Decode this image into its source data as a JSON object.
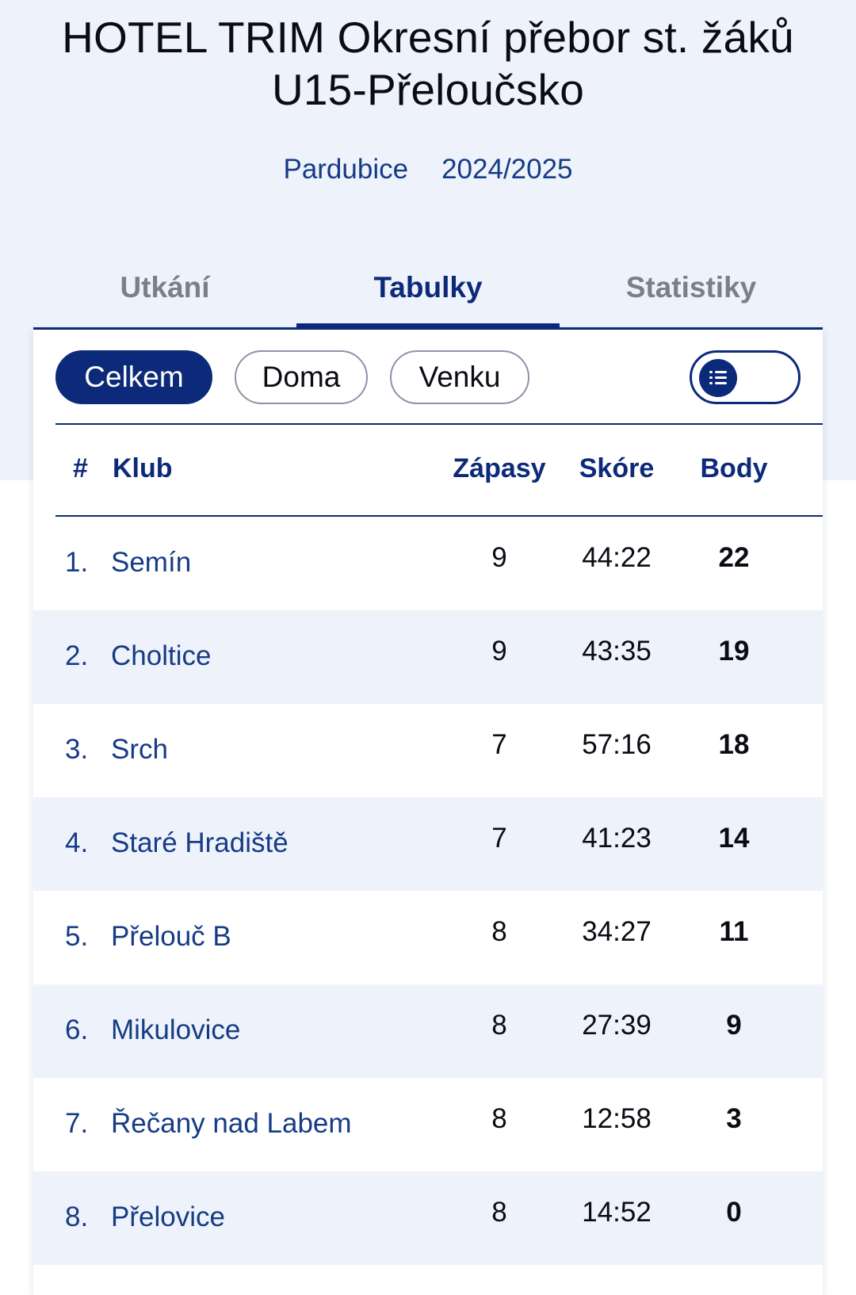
{
  "header": {
    "title_line1": "HOTEL TRIM Okresní přebor st. žáků",
    "title_line2": "U15-Přeloučsko",
    "region": "Pardubice",
    "season": "2024/2025"
  },
  "tabs": [
    {
      "label": "Utkání",
      "active": false
    },
    {
      "label": "Tabulky",
      "active": true
    },
    {
      "label": "Statistiky",
      "active": false
    }
  ],
  "filters": [
    {
      "label": "Celkem",
      "active": true
    },
    {
      "label": "Doma",
      "active": false
    },
    {
      "label": "Venku",
      "active": false
    }
  ],
  "view_toggle": {
    "icon": "list-icon",
    "state": "list"
  },
  "table": {
    "headers": {
      "rank": "#",
      "club": "Klub",
      "matches": "Zápasy",
      "score": "Skóre",
      "points": "Body"
    },
    "rows": [
      {
        "rank": "1.",
        "club": "Semín",
        "matches": "9",
        "score": "44:22",
        "points": "22"
      },
      {
        "rank": "2.",
        "club": "Choltice",
        "matches": "9",
        "score": "43:35",
        "points": "19"
      },
      {
        "rank": "3.",
        "club": "Srch",
        "matches": "7",
        "score": "57:16",
        "points": "18"
      },
      {
        "rank": "4.",
        "club": "Staré Hradiště",
        "matches": "7",
        "score": "41:23",
        "points": "14"
      },
      {
        "rank": "5.",
        "club": "Přelouč B",
        "matches": "8",
        "score": "34:27",
        "points": "11"
      },
      {
        "rank": "6.",
        "club": "Mikulovice",
        "matches": "8",
        "score": "27:39",
        "points": "9"
      },
      {
        "rank": "7.",
        "club": "Řečany nad Labem",
        "matches": "8",
        "score": "12:58",
        "points": "3"
      },
      {
        "rank": "8.",
        "club": "Přelovice",
        "matches": "8",
        "score": "14:52",
        "points": "0"
      }
    ]
  },
  "colors": {
    "accent": "#0d2a7a",
    "hero_bg": "#eef2fb",
    "row_alt": "#eef2fb",
    "inactive_tab": "#7a7f8b"
  }
}
